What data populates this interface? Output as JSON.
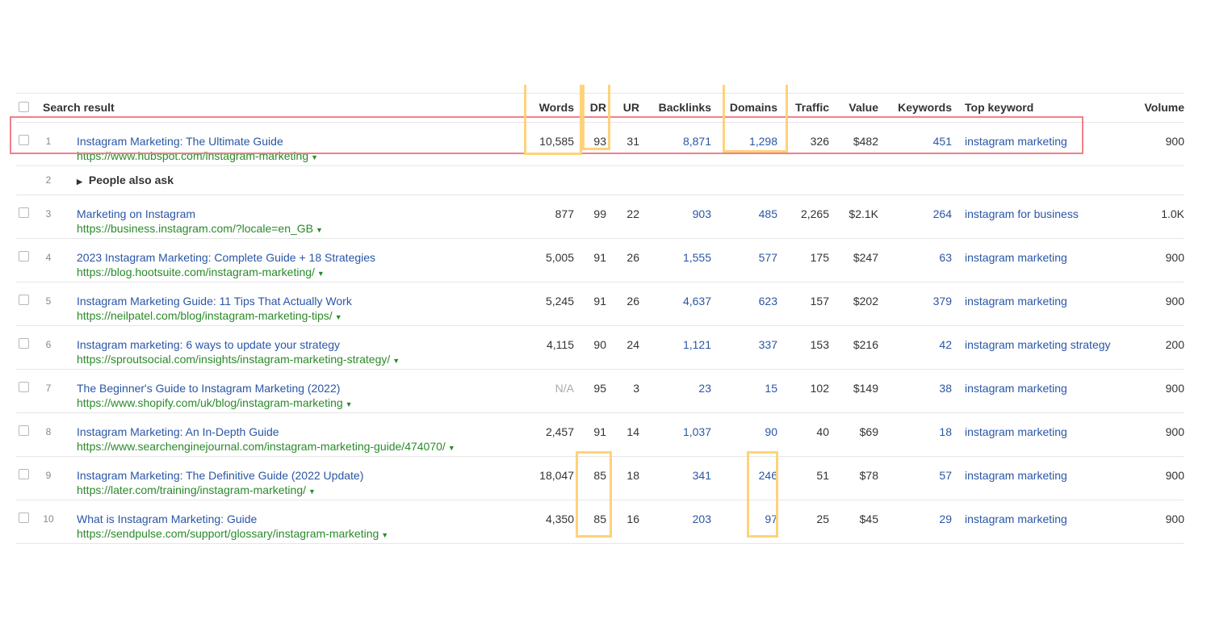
{
  "header": {
    "select_all": "",
    "search_result": "Search result",
    "words": "Words",
    "dr": "DR",
    "ur": "UR",
    "backlinks": "Backlinks",
    "domains": "Domains",
    "traffic": "Traffic",
    "value": "Value",
    "keywords": "Keywords",
    "top_keyword": "Top keyword",
    "volume": "Volume"
  },
  "rows": [
    {
      "idx": "1",
      "title": "Instagram Marketing: The Ultimate Guide",
      "url": "https://www.hubspot.com/instagram-marketing",
      "words": "10,585",
      "dr": "93",
      "ur": "31",
      "backlinks": "8,871",
      "domains": "1,298",
      "traffic": "326",
      "value": "$482",
      "keywords": "451",
      "top_keyword": "instagram marketing",
      "volume": "900"
    },
    {
      "idx": "3",
      "title": "Marketing on Instagram",
      "url": "https://business.instagram.com/?locale=en_GB",
      "words": "877",
      "dr": "99",
      "ur": "22",
      "backlinks": "903",
      "domains": "485",
      "traffic": "2,265",
      "value": "$2.1K",
      "keywords": "264",
      "top_keyword": "instagram for business",
      "volume": "1.0K"
    },
    {
      "idx": "4",
      "title": "2023 Instagram Marketing: Complete Guide + 18 Strategies",
      "url": "https://blog.hootsuite.com/instagram-marketing/",
      "words": "5,005",
      "dr": "91",
      "ur": "26",
      "backlinks": "1,555",
      "domains": "577",
      "traffic": "175",
      "value": "$247",
      "keywords": "63",
      "top_keyword": "instagram marketing",
      "volume": "900"
    },
    {
      "idx": "5",
      "title": "Instagram Marketing Guide: 11 Tips That Actually Work",
      "url": "https://neilpatel.com/blog/instagram-marketing-tips/",
      "words": "5,245",
      "dr": "91",
      "ur": "26",
      "backlinks": "4,637",
      "domains": "623",
      "traffic": "157",
      "value": "$202",
      "keywords": "379",
      "top_keyword": "instagram marketing",
      "volume": "900"
    },
    {
      "idx": "6",
      "title": "Instagram marketing: 6 ways to update your strategy",
      "url": "https://sproutsocial.com/insights/instagram-marketing-strategy/",
      "words": "4,115",
      "dr": "90",
      "ur": "24",
      "backlinks": "1,121",
      "domains": "337",
      "traffic": "153",
      "value": "$216",
      "keywords": "42",
      "top_keyword": "instagram marketing strategy",
      "volume": "200"
    },
    {
      "idx": "7",
      "title": "The Beginner's Guide to Instagram Marketing (2022)",
      "url": "https://www.shopify.com/uk/blog/instagram-marketing",
      "words": "N/A",
      "dr": "95",
      "ur": "3",
      "backlinks": "23",
      "domains": "15",
      "traffic": "102",
      "value": "$149",
      "keywords": "38",
      "top_keyword": "instagram marketing",
      "volume": "900"
    },
    {
      "idx": "8",
      "title": "Instagram Marketing: An In-Depth Guide",
      "url": "https://www.searchenginejournal.com/instagram-marketing-guide/474070/",
      "words": "2,457",
      "dr": "91",
      "ur": "14",
      "backlinks": "1,037",
      "domains": "90",
      "traffic": "40",
      "value": "$69",
      "keywords": "18",
      "top_keyword": "instagram marketing",
      "volume": "900"
    },
    {
      "idx": "9",
      "title": "Instagram Marketing: The Definitive Guide (2022 Update)",
      "url": "https://later.com/training/instagram-marketing/",
      "words": "18,047",
      "dr": "85",
      "ur": "18",
      "backlinks": "341",
      "domains": "246",
      "traffic": "51",
      "value": "$78",
      "keywords": "57",
      "top_keyword": "instagram marketing",
      "volume": "900"
    },
    {
      "idx": "10",
      "title": "What is Instagram Marketing: Guide",
      "url": "https://sendpulse.com/support/glossary/instagram-marketing",
      "words": "4,350",
      "dr": "85",
      "ur": "16",
      "backlinks": "203",
      "domains": "97",
      "traffic": "25",
      "value": "$45",
      "keywords": "29",
      "top_keyword": "instagram marketing",
      "volume": "900"
    }
  ],
  "people_also_ask": {
    "idx": "2",
    "label": "People also ask"
  },
  "colors": {
    "link": "#2a56a6",
    "url": "#2a8a2a",
    "highlight_red": "#f0808a",
    "highlight_yellow": "#ffd27a"
  }
}
